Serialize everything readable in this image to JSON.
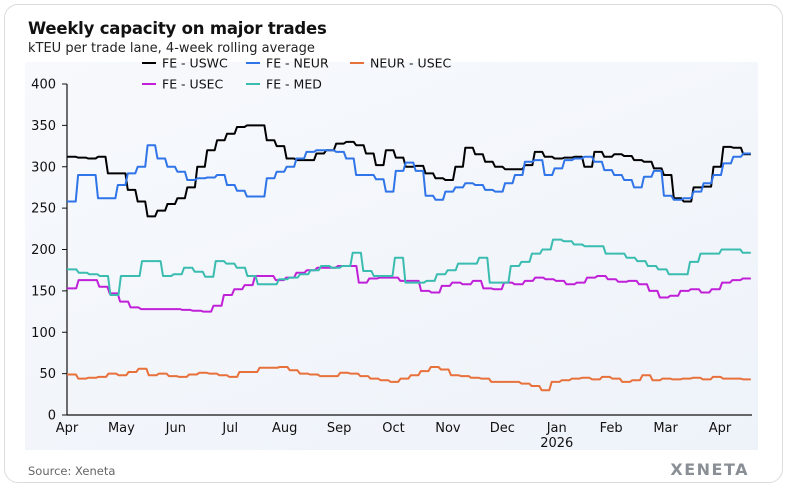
{
  "header": {
    "title": "Weekly capacity on major trades",
    "subtitle": "kTEU per trade lane, 4-week rolling average"
  },
  "footer": {
    "source": "Source: Xeneta",
    "logo": "XENETA"
  },
  "chart_data": {
    "type": "line",
    "title": "Weekly capacity on major trades",
    "subtitle": "kTEU per trade lane, 4-week rolling average",
    "xlabel": "",
    "ylabel": "",
    "ylim": [
      0,
      400
    ],
    "yticks": [
      0,
      50,
      100,
      150,
      200,
      250,
      300,
      350,
      400
    ],
    "xticks": [
      "Apr",
      "May",
      "Jun",
      "Jul",
      "Aug",
      "Sep",
      "Oct",
      "Nov",
      "Dec",
      "Jan",
      "Feb",
      "Mar",
      "Apr"
    ],
    "xtick_sublabels": {
      "Jan": "2026"
    },
    "x_unit": "week",
    "x_start": "2025-04",
    "grid": false,
    "legend_position": "top",
    "series": [
      {
        "name": "FE - USWC",
        "color": "#000000",
        "values": [
          312,
          311,
          310,
          312,
          292,
          292,
          272,
          258,
          240,
          247,
          255,
          262,
          275,
          300,
          320,
          332,
          340,
          348,
          350,
          350,
          332,
          325,
          310,
          308,
          308,
          316,
          320,
          328,
          330,
          326,
          316,
          302,
          320,
          311,
          300,
          301,
          292,
          286,
          284,
          300,
          323,
          315,
          306,
          300,
          297,
          297,
          302,
          318,
          312,
          310,
          311,
          312,
          300,
          318,
          312,
          315,
          313,
          308,
          306,
          298,
          290,
          262,
          258,
          275,
          276,
          300,
          324,
          323,
          315
        ]
      },
      {
        "name": "FE - NEUR",
        "color": "#2f74e8",
        "values": [
          258,
          290,
          290,
          262,
          262,
          278,
          292,
          300,
          326,
          310,
          300,
          294,
          284,
          286,
          287,
          290,
          278,
          271,
          264,
          264,
          286,
          294,
          300,
          310,
          318,
          320,
          320,
          318,
          310,
          290,
          290,
          285,
          270,
          295,
          305,
          295,
          265,
          260,
          270,
          275,
          280,
          278,
          272,
          270,
          280,
          290,
          306,
          308,
          290,
          298,
          308,
          310,
          312,
          306,
          296,
          290,
          284,
          275,
          288,
          295,
          265,
          260,
          262,
          270,
          280,
          290,
          304,
          312,
          316
        ]
      },
      {
        "name": "NEUR - USEC",
        "color": "#e8703a",
        "values": [
          49,
          44,
          45,
          46,
          50,
          48,
          52,
          56,
          48,
          50,
          47,
          46,
          49,
          51,
          50,
          48,
          46,
          52,
          52,
          57,
          57,
          58,
          54,
          50,
          49,
          47,
          47,
          51,
          50,
          47,
          44,
          42,
          40,
          44,
          48,
          53,
          58,
          55,
          48,
          47,
          45,
          44,
          40,
          40,
          40,
          38,
          35,
          30,
          40,
          42,
          44,
          45,
          43,
          46,
          44,
          40,
          42,
          48,
          42,
          44,
          43,
          44,
          45,
          43,
          46,
          44,
          44,
          43
        ]
      },
      {
        "name": "FE - USEC",
        "color": "#c020d8",
        "values": [
          153,
          163,
          163,
          155,
          147,
          137,
          130,
          128,
          128,
          128,
          128,
          127,
          126,
          125,
          132,
          145,
          152,
          157,
          168,
          168,
          163,
          166,
          172,
          175,
          178,
          178,
          180,
          180,
          160,
          165,
          166,
          166,
          162,
          162,
          150,
          148,
          156,
          160,
          158,
          162,
          153,
          152,
          160,
          158,
          162,
          166,
          164,
          162,
          158,
          160,
          166,
          168,
          164,
          161,
          162,
          158,
          150,
          142,
          144,
          150,
          152,
          148,
          152,
          160,
          163,
          165
        ]
      },
      {
        "name": "FE - MED",
        "color": "#3bbcb0",
        "values": [
          176,
          172,
          170,
          168,
          145,
          168,
          168,
          186,
          186,
          168,
          170,
          178,
          173,
          167,
          186,
          183,
          178,
          168,
          158,
          158,
          164,
          166,
          170,
          175,
          180,
          178,
          180,
          196,
          174,
          168,
          168,
          190,
          160,
          160,
          162,
          170,
          175,
          183,
          183,
          190,
          160,
          160,
          180,
          185,
          195,
          200,
          212,
          210,
          206,
          204,
          204,
          195,
          195,
          190,
          186,
          180,
          176,
          170,
          170,
          185,
          195,
          195,
          200,
          200,
          196
        ]
      }
    ]
  }
}
